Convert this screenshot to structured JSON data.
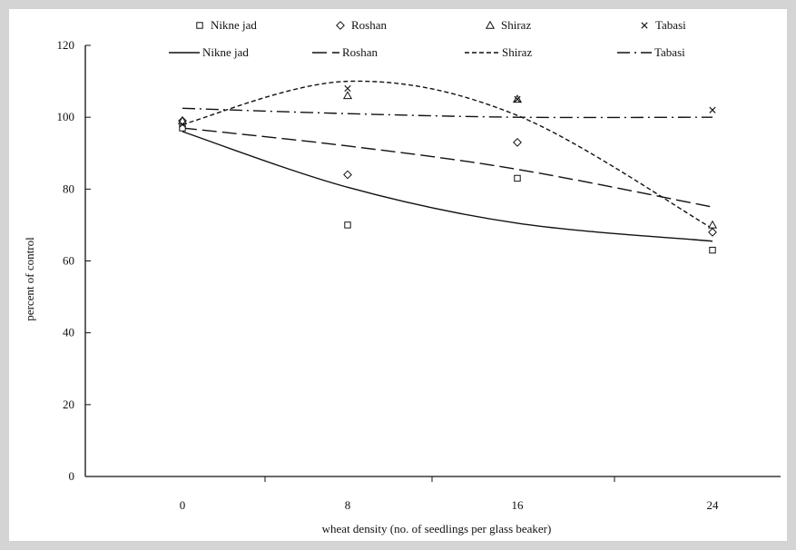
{
  "chart_data": {
    "type": "scatter",
    "title": "",
    "xlabel": "wheat density (no. of seedlings per glass beaker)",
    "ylabel": "percent of control",
    "categories": [
      "0",
      "8",
      "16",
      "24"
    ],
    "x": [
      0,
      8,
      16,
      24
    ],
    "ylim": [
      0,
      120
    ],
    "yticks": [
      0,
      20,
      40,
      60,
      80,
      100,
      120
    ],
    "grid": false,
    "legend_position": "top",
    "series": [
      {
        "name": "Nikne jad",
        "marker": "square",
        "color": "#111111",
        "values": [
          97,
          70,
          83,
          63
        ]
      },
      {
        "name": "Roshan",
        "marker": "diamond",
        "color": "#111111",
        "values": [
          99,
          84,
          93,
          68
        ]
      },
      {
        "name": "Shiraz",
        "marker": "triangle",
        "color": "#111111",
        "values": [
          99,
          106,
          105,
          70
        ]
      },
      {
        "name": "Tabasi",
        "marker": "cross",
        "color": "#111111",
        "values": [
          98,
          108,
          105,
          102
        ]
      }
    ],
    "trendlines": [
      {
        "name": "Nikne jad",
        "dash": "solid",
        "values": [
          96,
          80.5,
          70.5,
          65.5
        ]
      },
      {
        "name": "Roshan",
        "dash": "long-dash",
        "values": [
          97,
          92,
          85.5,
          75
        ]
      },
      {
        "name": "Shiraz",
        "dash": "short-dash",
        "values": [
          98,
          110,
          100.5,
          69
        ]
      },
      {
        "name": "Tabasi",
        "dash": "dash-dot",
        "values": [
          102.5,
          101,
          100,
          100
        ]
      }
    ]
  }
}
